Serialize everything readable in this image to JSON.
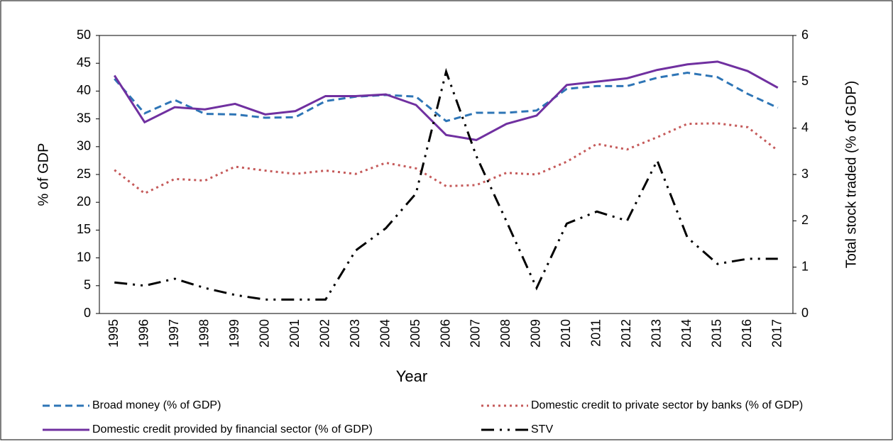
{
  "chart_data": {
    "type": "line",
    "x_label": "Year",
    "y_label": "% of GDP",
    "y2_label": "Total stock traded (% of GDP)",
    "categories": [
      "1995",
      "1996",
      "1997",
      "1998",
      "1999",
      "2000",
      "2001",
      "2002",
      "2003",
      "2004",
      "2005",
      "2006",
      "2007",
      "2008",
      "2009",
      "2010",
      "2011",
      "2012",
      "2013",
      "2014",
      "2015",
      "2016",
      "2017"
    ],
    "ylim": [
      0,
      50
    ],
    "yticks": [
      0,
      5,
      10,
      15,
      20,
      25,
      30,
      35,
      40,
      45,
      50
    ],
    "y2lim": [
      0,
      6
    ],
    "y2ticks": [
      0,
      1,
      2,
      3,
      4,
      5,
      6
    ],
    "legend": "bottom",
    "series": [
      {
        "name": "Broad money (% of GDP)",
        "color": "#2e75b6",
        "values": [
          42.2,
          36,
          38.4,
          35.9,
          35.8,
          35.2,
          35.3,
          38.2,
          39,
          39.3,
          39,
          34.6,
          36.1,
          36.1,
          36.5,
          40.4,
          40.9,
          40.9,
          42.4,
          43.3,
          42.5,
          39.5,
          37
        ]
      },
      {
        "name": "Domestic credit to private sector by banks (% of GDP)",
        "color": "#c55a5a",
        "values": [
          25.8,
          21.6,
          24.2,
          23.9,
          26.4,
          25.7,
          25.1,
          25.7,
          25.1,
          27.1,
          26.1,
          22.9,
          23.1,
          25.3,
          25,
          27.3,
          30.5,
          29.5,
          31.7,
          34.1,
          34.2,
          33.5,
          29.3
        ]
      },
      {
        "name": "Domestic credit provided by financial sector (% of GDP)",
        "color": "#7030a0",
        "values": [
          42.8,
          34.4,
          37.1,
          36.7,
          37.7,
          35.8,
          36.4,
          39.1,
          39.1,
          39.4,
          37.5,
          32.1,
          31.2,
          34.1,
          35.6,
          41.1,
          41.7,
          42.3,
          43.8,
          44.8,
          45.3,
          43.6,
          40.6
        ]
      },
      {
        "name": "STV",
        "color": "#000000",
        "axis": "y2",
        "values": [
          0.67,
          0.6,
          0.75,
          0.55,
          0.4,
          0.3,
          0.3,
          0.3,
          1.36,
          1.84,
          2.59,
          5.22,
          3.4,
          1.99,
          0.55,
          1.94,
          2.2,
          2.0,
          3.3,
          1.64,
          1.07,
          1.18,
          1.18
        ]
      }
    ]
  }
}
